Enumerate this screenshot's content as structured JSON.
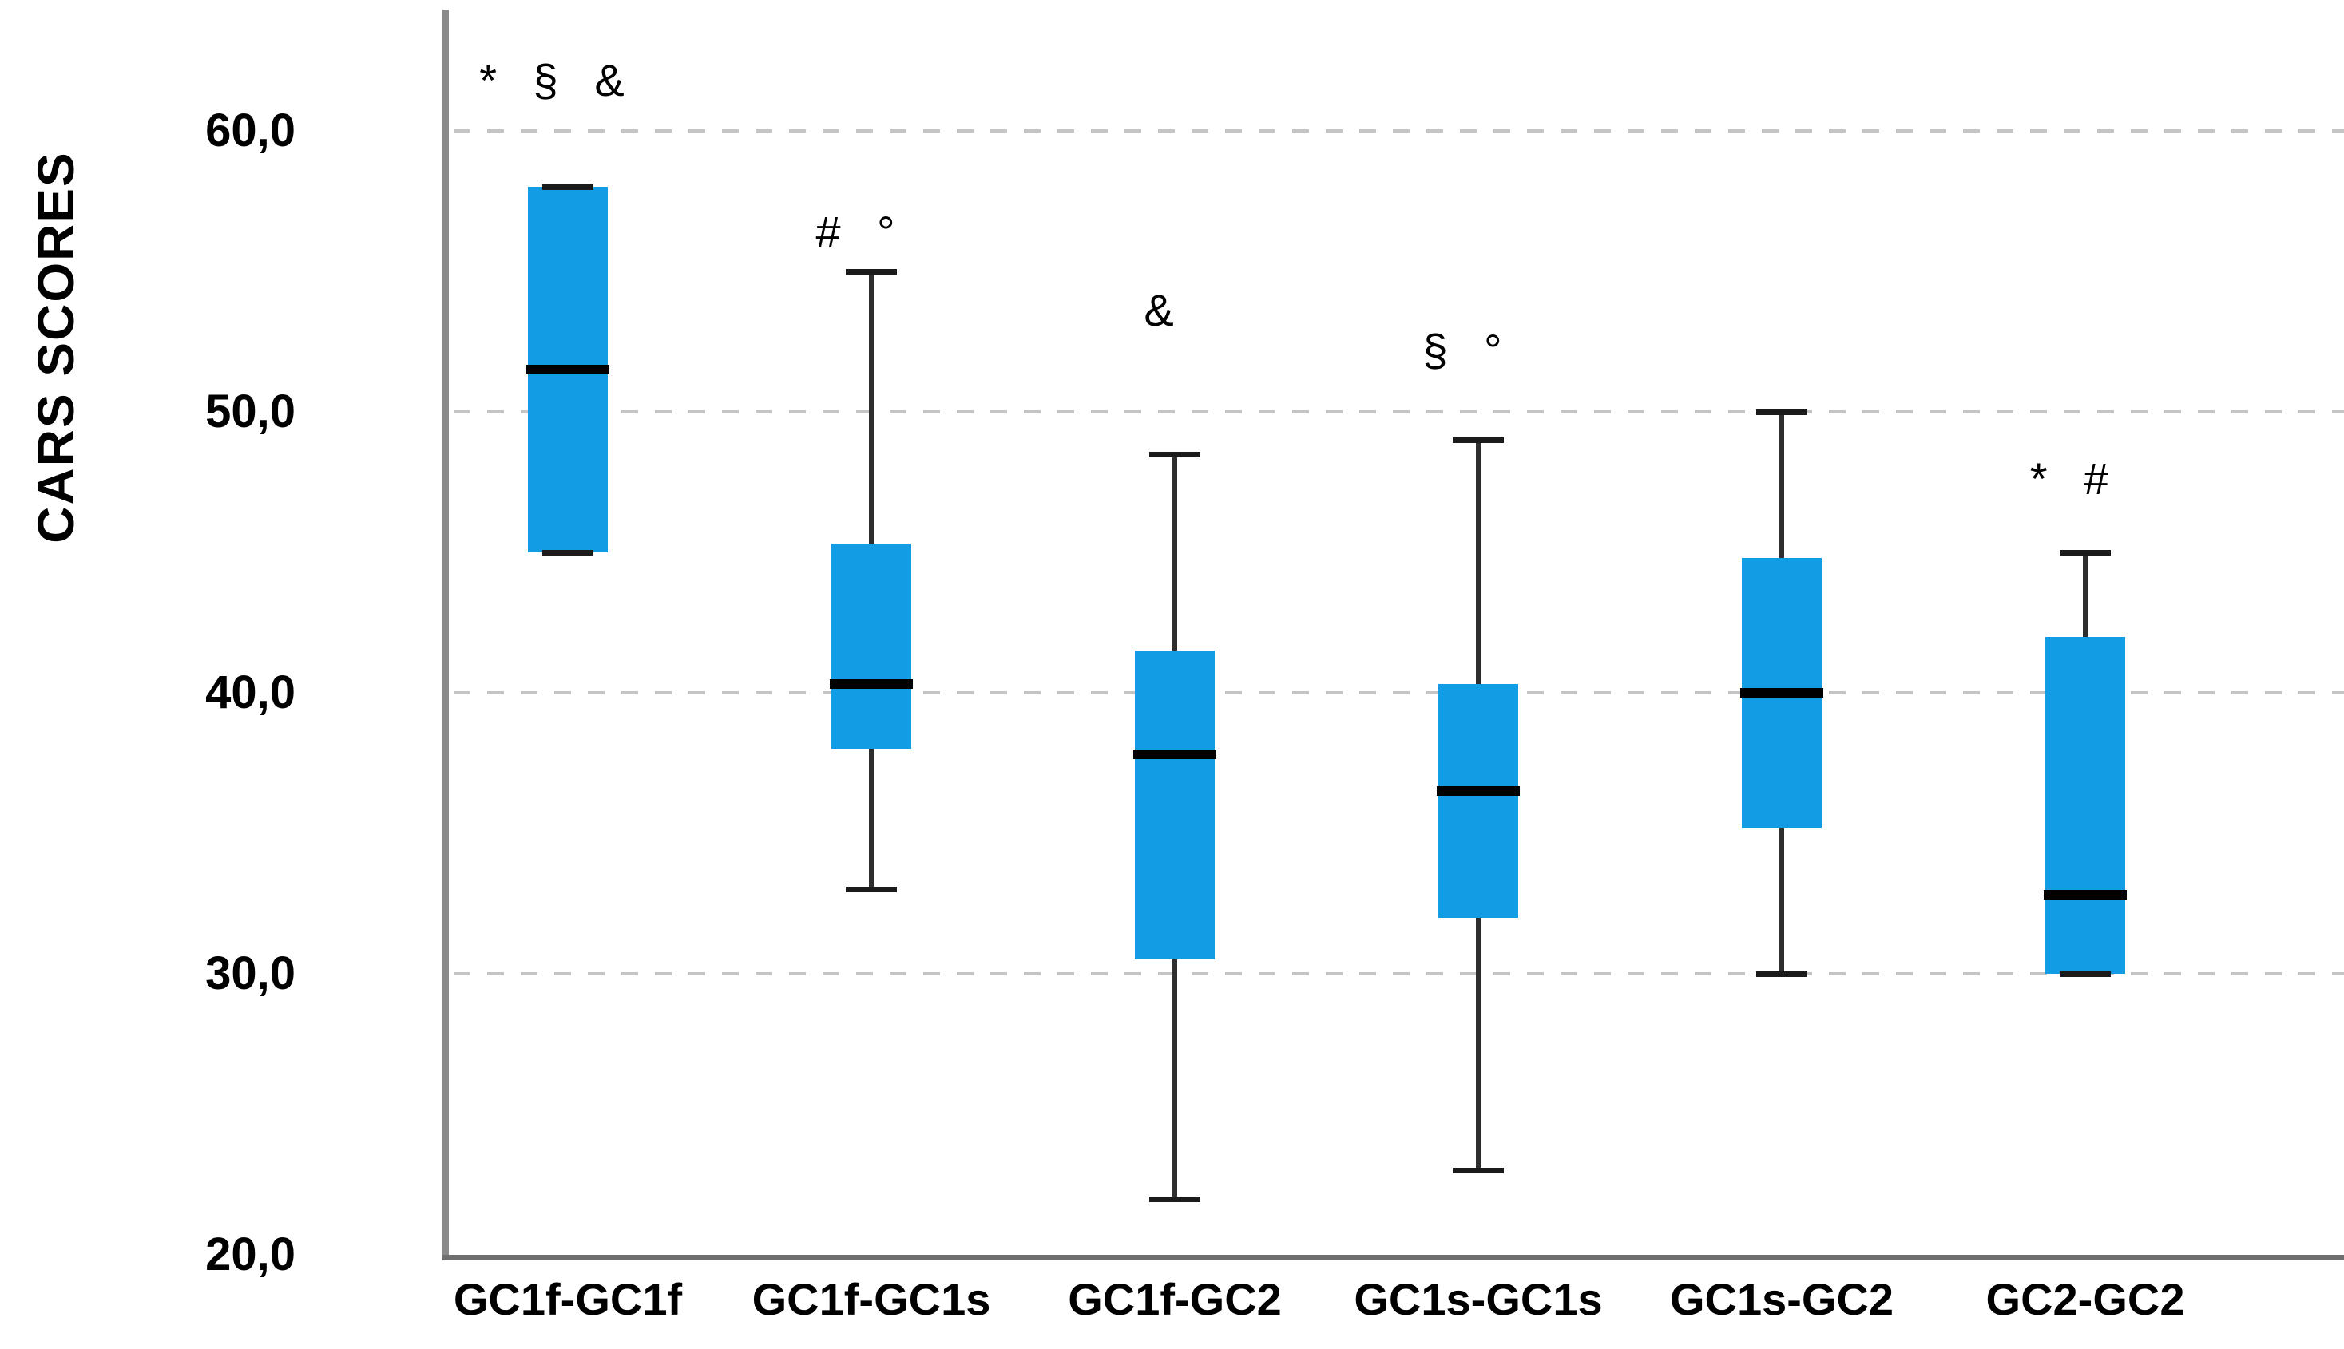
{
  "chart_data": {
    "type": "box",
    "title": "",
    "xlabel": "",
    "ylabel": "CARS SCORES",
    "ylim": [
      20,
      64.5
    ],
    "grid": "dashed-horizontal",
    "legend": "none",
    "decimal_separator": ",",
    "yticks": [
      {
        "value": 60,
        "label": "60,0"
      },
      {
        "value": 50,
        "label": "50,0"
      },
      {
        "value": 40,
        "label": "40,0"
      },
      {
        "value": 30,
        "label": "30,0"
      },
      {
        "value": 20,
        "label": "20,0"
      }
    ],
    "gridline_values": [
      60,
      50,
      40,
      30
    ],
    "categories": [
      "GC1f-GC1f",
      "GC1f-GC1s",
      "GC1f-GC2",
      "GC1s-GC1s",
      "GC1s-GC2",
      "GC2-GC2"
    ],
    "series": [
      {
        "category": "GC1f-GC1f",
        "min": 45.0,
        "q1": 45.0,
        "median": 51.5,
        "q3": 58.0,
        "max": 58.0,
        "annotation": "* § &",
        "annotation_y": 61.8
      },
      {
        "category": "GC1f-GC1s",
        "min": 33.0,
        "q1": 38.0,
        "median": 40.3,
        "q3": 45.3,
        "max": 55.0,
        "annotation": "# °",
        "annotation_y": 56.4
      },
      {
        "category": "GC1f-GC2",
        "min": 22.0,
        "q1": 30.5,
        "median": 37.8,
        "q3": 41.5,
        "max": 48.5,
        "annotation": "&",
        "annotation_y": 53.6
      },
      {
        "category": "GC1s-GC1s",
        "min": 23.0,
        "q1": 32.0,
        "median": 36.5,
        "q3": 40.3,
        "max": 49.0,
        "annotation": "§ °",
        "annotation_y": 52.2
      },
      {
        "category": "GC1s-GC2",
        "min": 30.0,
        "q1": 35.2,
        "median": 40.0,
        "q3": 44.8,
        "max": 50.0,
        "annotation": "",
        "annotation_y": null
      },
      {
        "category": "GC2-GC2",
        "min": 30.0,
        "q1": 30.0,
        "median": 32.8,
        "q3": 42.0,
        "max": 45.0,
        "annotation": "* #",
        "annotation_y": 47.6
      }
    ],
    "colors": {
      "box_fill": "#119CE4",
      "median": "#000000",
      "whisker": "#2e2e2e",
      "cap": "#1b1b1b",
      "gridline": "#c4c4c4",
      "axis": "#7a7a7a",
      "text": "#000000",
      "background": "#ffffff"
    }
  }
}
